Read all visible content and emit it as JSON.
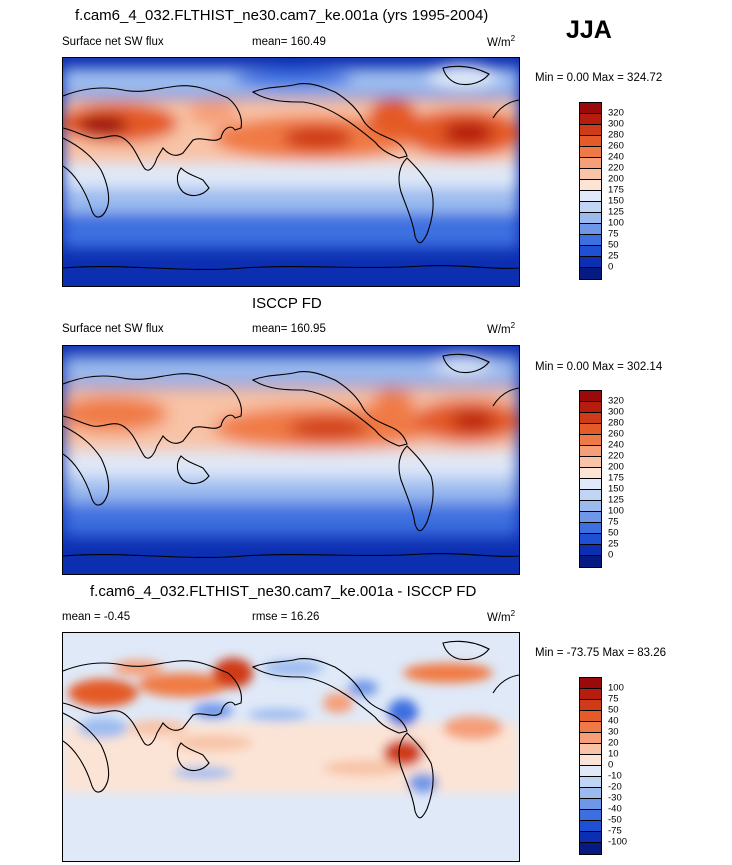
{
  "season": "JJA",
  "panels": [
    {
      "title": "f.cam6_4_032.FLTHIST_ne30.cam7_ke.001a (yrs 1995-2004)",
      "left_label": "Surface net SW flux",
      "center_label": "mean= 160.49",
      "units": "W/m",
      "units_sup": "2",
      "range": "Min =   0.00 Max = 324.72",
      "levels": [
        "320",
        "300",
        "280",
        "260",
        "240",
        "220",
        "200",
        "175",
        "150",
        "125",
        "100",
        "75",
        "50",
        "25",
        "0"
      ],
      "colors": [
        "#9b0a0a",
        "#b61d0f",
        "#cf3a18",
        "#e45a28",
        "#f07a45",
        "#f59e78",
        "#f8c3a6",
        "#fbe4d6",
        "#dfe9f8",
        "#c0d4f4",
        "#9bbbef",
        "#6f97e8",
        "#3d6fe0",
        "#1f4fd2",
        "#0c2fb2",
        "#061a82"
      ],
      "type": "absolute"
    },
    {
      "title": "ISCCP FD",
      "left_label": "Surface net SW flux",
      "center_label": "mean= 160.95",
      "units": "W/m",
      "units_sup": "2",
      "range": "Min =   0.00 Max = 302.14",
      "levels": [
        "320",
        "300",
        "280",
        "260",
        "240",
        "220",
        "200",
        "175",
        "150",
        "125",
        "100",
        "75",
        "50",
        "25",
        "0"
      ],
      "colors": [
        "#9b0a0a",
        "#b61d0f",
        "#cf3a18",
        "#e45a28",
        "#f07a45",
        "#f59e78",
        "#f8c3a6",
        "#fbe4d6",
        "#dfe9f8",
        "#c0d4f4",
        "#9bbbef",
        "#6f97e8",
        "#3d6fe0",
        "#1f4fd2",
        "#0c2fb2",
        "#061a82"
      ],
      "type": "absolute"
    },
    {
      "title": "f.cam6_4_032.FLTHIST_ne30.cam7_ke.001a - ISCCP FD",
      "left_label": "mean =  -0.45",
      "center_label": "rmse =  16.26",
      "units": "W/m",
      "units_sup": "2",
      "range": "Min = -73.75 Max =  83.26",
      "levels": [
        "100",
        "75",
        "50",
        "40",
        "30",
        "20",
        "10",
        "0",
        "-10",
        "-20",
        "-30",
        "-40",
        "-50",
        "-75",
        "-100"
      ],
      "colors": [
        "#9b0a0a",
        "#b61d0f",
        "#cf3a18",
        "#e45a28",
        "#f07a45",
        "#f59e78",
        "#f8c3a6",
        "#fbe4d6",
        "#dfe9f8",
        "#c0d4f4",
        "#9bbbef",
        "#6f97e8",
        "#3d6fe0",
        "#1f4fd2",
        "#0c2fb2",
        "#061a82"
      ],
      "type": "difference"
    }
  ]
}
